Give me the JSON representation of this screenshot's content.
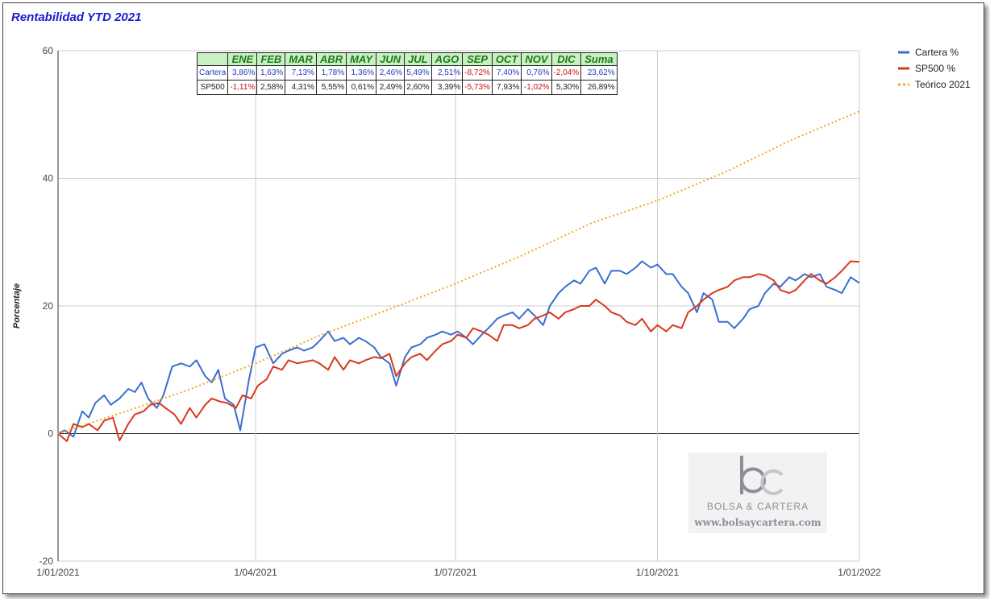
{
  "chart_data": {
    "type": "line",
    "title": "Rentabilidad YTD 2021",
    "ylabel": "Porcentaje",
    "xlabel": "",
    "ylim": [
      -20,
      60
    ],
    "yticks": [
      -20,
      0,
      20,
      40,
      60
    ],
    "xlim": [
      "2021-01-01",
      "2022-01-01"
    ],
    "xticks": [
      "2021-01-01",
      "2021-04-01",
      "2021-07-01",
      "2021-10-01",
      "2022-01-01"
    ],
    "xtick_labels": [
      "1/01/2021",
      "1/04/2021",
      "1/07/2021",
      "1/10/2021",
      "1/01/2022"
    ],
    "grid": true,
    "legend_position": "right",
    "series": [
      {
        "name": "Cartera %",
        "color": "#3a6fd0",
        "style": "solid",
        "points": [
          [
            "2021-01-01",
            0
          ],
          [
            "2021-01-04",
            0.5
          ],
          [
            "2021-01-08",
            -0.5
          ],
          [
            "2021-01-12",
            3.5
          ],
          [
            "2021-01-15",
            2.5
          ],
          [
            "2021-01-18",
            4.8
          ],
          [
            "2021-01-22",
            6
          ],
          [
            "2021-01-25",
            4.5
          ],
          [
            "2021-01-29",
            5.5
          ],
          [
            "2021-02-02",
            7
          ],
          [
            "2021-02-05",
            6.5
          ],
          [
            "2021-02-08",
            8
          ],
          [
            "2021-02-11",
            5.5
          ],
          [
            "2021-02-15",
            4
          ],
          [
            "2021-02-18",
            6
          ],
          [
            "2021-02-22",
            10.5
          ],
          [
            "2021-02-26",
            11
          ],
          [
            "2021-03-02",
            10.5
          ],
          [
            "2021-03-05",
            11.5
          ],
          [
            "2021-03-09",
            9
          ],
          [
            "2021-03-12",
            8
          ],
          [
            "2021-03-15",
            10
          ],
          [
            "2021-03-18",
            5.5
          ],
          [
            "2021-03-22",
            4.5
          ],
          [
            "2021-03-25",
            0.5
          ],
          [
            "2021-03-29",
            8.5
          ],
          [
            "2021-04-01",
            13.5
          ],
          [
            "2021-04-05",
            14
          ],
          [
            "2021-04-09",
            11
          ],
          [
            "2021-04-13",
            12.5
          ],
          [
            "2021-04-16",
            13
          ],
          [
            "2021-04-20",
            13.5
          ],
          [
            "2021-04-23",
            13
          ],
          [
            "2021-04-27",
            13.5
          ],
          [
            "2021-04-30",
            14.5
          ],
          [
            "2021-05-04",
            16
          ],
          [
            "2021-05-07",
            14.5
          ],
          [
            "2021-05-11",
            15
          ],
          [
            "2021-05-14",
            14
          ],
          [
            "2021-05-18",
            15
          ],
          [
            "2021-05-21",
            14.5
          ],
          [
            "2021-05-25",
            13.5
          ],
          [
            "2021-05-28",
            12
          ],
          [
            "2021-06-01",
            11
          ],
          [
            "2021-06-04",
            7.5
          ],
          [
            "2021-06-08",
            12
          ],
          [
            "2021-06-11",
            13.5
          ],
          [
            "2021-06-15",
            14
          ],
          [
            "2021-06-18",
            15
          ],
          [
            "2021-06-22",
            15.5
          ],
          [
            "2021-06-25",
            16
          ],
          [
            "2021-06-29",
            15.5
          ],
          [
            "2021-07-02",
            16
          ],
          [
            "2021-07-06",
            15
          ],
          [
            "2021-07-09",
            14
          ],
          [
            "2021-07-13",
            15.5
          ],
          [
            "2021-07-16",
            16.5
          ],
          [
            "2021-07-20",
            18
          ],
          [
            "2021-07-23",
            18.5
          ],
          [
            "2021-07-27",
            19
          ],
          [
            "2021-07-30",
            18
          ],
          [
            "2021-08-03",
            19.5
          ],
          [
            "2021-08-06",
            18.5
          ],
          [
            "2021-08-10",
            17
          ],
          [
            "2021-08-13",
            20
          ],
          [
            "2021-08-17",
            22
          ],
          [
            "2021-08-20",
            23
          ],
          [
            "2021-08-24",
            24
          ],
          [
            "2021-08-27",
            23.5
          ],
          [
            "2021-08-31",
            25.5
          ],
          [
            "2021-09-03",
            26
          ],
          [
            "2021-09-07",
            23.5
          ],
          [
            "2021-09-10",
            25.5
          ],
          [
            "2021-09-14",
            25.5
          ],
          [
            "2021-09-17",
            25
          ],
          [
            "2021-09-21",
            26
          ],
          [
            "2021-09-24",
            27
          ],
          [
            "2021-09-28",
            26
          ],
          [
            "2021-10-01",
            26.5
          ],
          [
            "2021-10-05",
            25
          ],
          [
            "2021-10-08",
            25
          ],
          [
            "2021-10-12",
            23
          ],
          [
            "2021-10-15",
            22
          ],
          [
            "2021-10-19",
            19
          ],
          [
            "2021-10-22",
            22
          ],
          [
            "2021-10-26",
            21
          ],
          [
            "2021-10-29",
            17.5
          ],
          [
            "2021-11-02",
            17.5
          ],
          [
            "2021-11-05",
            16.5
          ],
          [
            "2021-11-09",
            18
          ],
          [
            "2021-11-12",
            19.5
          ],
          [
            "2021-11-16",
            20
          ],
          [
            "2021-11-19",
            22
          ],
          [
            "2021-11-23",
            23.5
          ],
          [
            "2021-11-26",
            23
          ],
          [
            "2021-11-30",
            24.5
          ],
          [
            "2021-12-03",
            24
          ],
          [
            "2021-12-07",
            25
          ],
          [
            "2021-12-10",
            24.5
          ],
          [
            "2021-12-14",
            25
          ],
          [
            "2021-12-17",
            23
          ],
          [
            "2021-12-21",
            22.5
          ],
          [
            "2021-12-24",
            22
          ],
          [
            "2021-12-28",
            24.5
          ],
          [
            "2022-01-01",
            23.6
          ]
        ]
      },
      {
        "name": "SP500 %",
        "color": "#d8391c",
        "style": "solid",
        "points": [
          [
            "2021-01-01",
            0
          ],
          [
            "2021-01-05",
            -1.2
          ],
          [
            "2021-01-08",
            1.5
          ],
          [
            "2021-01-12",
            1
          ],
          [
            "2021-01-15",
            1.5
          ],
          [
            "2021-01-19",
            0.5
          ],
          [
            "2021-01-22",
            2
          ],
          [
            "2021-01-26",
            2.5
          ],
          [
            "2021-01-29",
            -1.1
          ],
          [
            "2021-02-02",
            1.5
          ],
          [
            "2021-02-05",
            3
          ],
          [
            "2021-02-09",
            3.5
          ],
          [
            "2021-02-12",
            4.5
          ],
          [
            "2021-02-16",
            4.8
          ],
          [
            "2021-02-19",
            4
          ],
          [
            "2021-02-23",
            3
          ],
          [
            "2021-02-26",
            1.5
          ],
          [
            "2021-03-02",
            4
          ],
          [
            "2021-03-05",
            2.5
          ],
          [
            "2021-03-09",
            4.5
          ],
          [
            "2021-03-12",
            5.5
          ],
          [
            "2021-03-16",
            5
          ],
          [
            "2021-03-19",
            4.8
          ],
          [
            "2021-03-23",
            4
          ],
          [
            "2021-03-26",
            6
          ],
          [
            "2021-03-30",
            5.5
          ],
          [
            "2021-04-02",
            7.5
          ],
          [
            "2021-04-06",
            8.5
          ],
          [
            "2021-04-09",
            10.5
          ],
          [
            "2021-04-13",
            10
          ],
          [
            "2021-04-16",
            11.5
          ],
          [
            "2021-04-20",
            11
          ],
          [
            "2021-04-23",
            11.2
          ],
          [
            "2021-04-27",
            11.5
          ],
          [
            "2021-04-30",
            11
          ],
          [
            "2021-05-04",
            10
          ],
          [
            "2021-05-07",
            12
          ],
          [
            "2021-05-11",
            10
          ],
          [
            "2021-05-14",
            11.5
          ],
          [
            "2021-05-18",
            11
          ],
          [
            "2021-05-21",
            11.5
          ],
          [
            "2021-05-25",
            12
          ],
          [
            "2021-05-28",
            11.8
          ],
          [
            "2021-06-01",
            12.5
          ],
          [
            "2021-06-04",
            9
          ],
          [
            "2021-06-08",
            11
          ],
          [
            "2021-06-11",
            12
          ],
          [
            "2021-06-15",
            12.5
          ],
          [
            "2021-06-18",
            11.5
          ],
          [
            "2021-06-22",
            13
          ],
          [
            "2021-06-25",
            14
          ],
          [
            "2021-06-29",
            14.5
          ],
          [
            "2021-07-02",
            15.5
          ],
          [
            "2021-07-06",
            15
          ],
          [
            "2021-07-09",
            16.5
          ],
          [
            "2021-07-13",
            16
          ],
          [
            "2021-07-16",
            15.5
          ],
          [
            "2021-07-20",
            14.5
          ],
          [
            "2021-07-23",
            17
          ],
          [
            "2021-07-27",
            17
          ],
          [
            "2021-07-30",
            16.5
          ],
          [
            "2021-08-03",
            17
          ],
          [
            "2021-08-06",
            18
          ],
          [
            "2021-08-10",
            18.5
          ],
          [
            "2021-08-13",
            19
          ],
          [
            "2021-08-17",
            18
          ],
          [
            "2021-08-20",
            19
          ],
          [
            "2021-08-24",
            19.5
          ],
          [
            "2021-08-27",
            20
          ],
          [
            "2021-08-31",
            20
          ],
          [
            "2021-09-03",
            21
          ],
          [
            "2021-09-07",
            20
          ],
          [
            "2021-09-10",
            19
          ],
          [
            "2021-09-14",
            18.5
          ],
          [
            "2021-09-17",
            17.5
          ],
          [
            "2021-09-21",
            17
          ],
          [
            "2021-09-24",
            18
          ],
          [
            "2021-09-28",
            16
          ],
          [
            "2021-10-01",
            17
          ],
          [
            "2021-10-05",
            16
          ],
          [
            "2021-10-08",
            17
          ],
          [
            "2021-10-12",
            16.5
          ],
          [
            "2021-10-15",
            19
          ],
          [
            "2021-10-19",
            20
          ],
          [
            "2021-10-22",
            21
          ],
          [
            "2021-10-26",
            22
          ],
          [
            "2021-10-29",
            22.5
          ],
          [
            "2021-11-02",
            23
          ],
          [
            "2021-11-05",
            24
          ],
          [
            "2021-11-09",
            24.5
          ],
          [
            "2021-11-12",
            24.5
          ],
          [
            "2021-11-16",
            25
          ],
          [
            "2021-11-19",
            24.8
          ],
          [
            "2021-11-23",
            24
          ],
          [
            "2021-11-26",
            22.5
          ],
          [
            "2021-11-30",
            22
          ],
          [
            "2021-12-03",
            22.5
          ],
          [
            "2021-12-07",
            24
          ],
          [
            "2021-12-10",
            25
          ],
          [
            "2021-12-14",
            24
          ],
          [
            "2021-12-17",
            23.5
          ],
          [
            "2021-12-21",
            24.5
          ],
          [
            "2021-12-24",
            25.5
          ],
          [
            "2021-12-28",
            27
          ],
          [
            "2022-01-01",
            26.9
          ]
        ]
      },
      {
        "name": "Teórico 2021",
        "color": "#f5a623",
        "style": "dotted",
        "points": [
          [
            "2021-01-01",
            0
          ],
          [
            "2021-02-01",
            3.5
          ],
          [
            "2021-03-01",
            6.8
          ],
          [
            "2021-04-01",
            11
          ],
          [
            "2021-05-01",
            15.5
          ],
          [
            "2021-06-01",
            19.5
          ],
          [
            "2021-07-01",
            23.5
          ],
          [
            "2021-08-01",
            28
          ],
          [
            "2021-09-01",
            33
          ],
          [
            "2021-10-01",
            36.5
          ],
          [
            "2021-11-01",
            41
          ],
          [
            "2021-12-01",
            46
          ],
          [
            "2022-01-01",
            50.5
          ]
        ]
      }
    ],
    "table": {
      "headers": [
        "ENE",
        "FEB",
        "MAR",
        "ABR",
        "MAY",
        "JUN",
        "JUL",
        "AGO",
        "SEP",
        "OCT",
        "NOV",
        "DIC",
        "Suma"
      ],
      "rows": [
        {
          "label": "Cartera",
          "values": [
            "3,86%",
            "1,63%",
            "7,13%",
            "1,78%",
            "1,36%",
            "2,46%",
            "5,49%",
            "2,51%",
            "-8,72%",
            "7,40%",
            "0,76%",
            "-2,04%",
            "23,62%"
          ]
        },
        {
          "label": "SP500",
          "values": [
            "-1,11%",
            "2,58%",
            "4,31%",
            "5,55%",
            "0,61%",
            "2,49%",
            "2,60%",
            "3,39%",
            "-5,73%",
            "7,93%",
            "-1,02%",
            "5,30%",
            "26,89%"
          ]
        }
      ]
    }
  },
  "watermark": {
    "name": "BOLSA & CARTERA",
    "url": "www.bolsaycartera.com"
  }
}
